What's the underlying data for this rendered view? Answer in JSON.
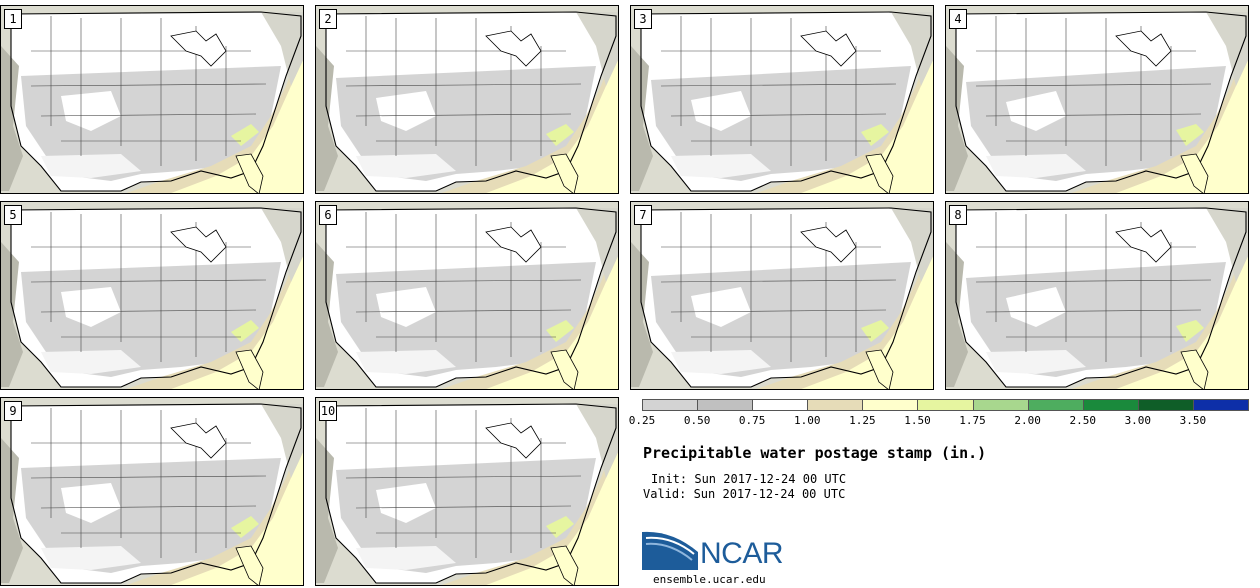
{
  "panels": [
    {
      "number": "1"
    },
    {
      "number": "2"
    },
    {
      "number": "3"
    },
    {
      "number": "4"
    },
    {
      "number": "5"
    },
    {
      "number": "6"
    },
    {
      "number": "7"
    },
    {
      "number": "8"
    },
    {
      "number": "9"
    },
    {
      "number": "10"
    }
  ],
  "colorbar": {
    "levels": [
      "0.25",
      "0.50",
      "0.75",
      "1.00",
      "1.25",
      "1.50",
      "1.75",
      "2.00",
      "2.50",
      "3.00",
      "3.50"
    ],
    "colors": [
      "#d3d3d3",
      "#c0c0c0",
      "#ffffff",
      "#e6dcb8",
      "#ffffcc",
      "#e6f5a0",
      "#a8d78e",
      "#4ead5f",
      "#1a8a3c",
      "#0f5e28",
      "#0d2fa8"
    ]
  },
  "title": "Precipitable water postage stamp (in.)",
  "init_line": "Init: Sun 2017-12-24 00 UTC",
  "valid_line": "Valid: Sun 2017-12-24 00 UTC",
  "logo": {
    "text": "NCAR",
    "color": "#1d5c9a"
  },
  "site": "ensemble.ucar.edu"
}
